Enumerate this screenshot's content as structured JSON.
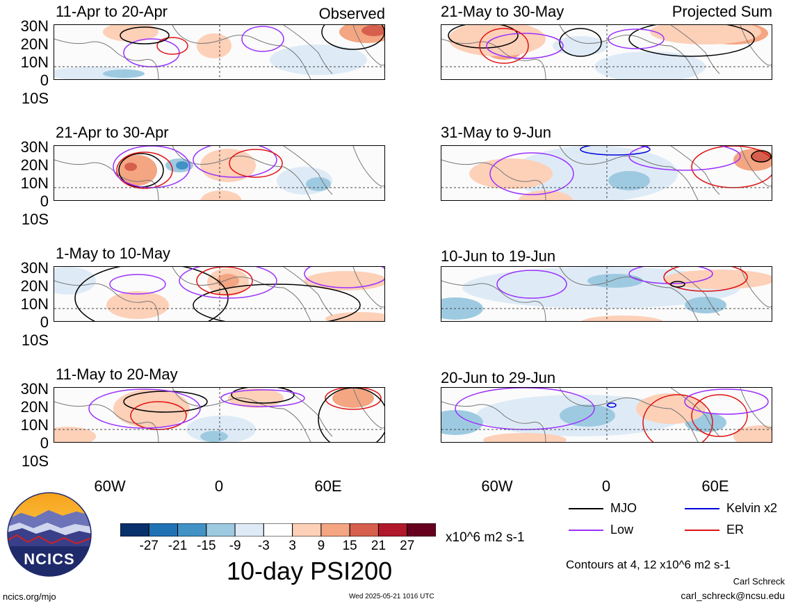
{
  "panels_left": [
    {
      "title": "11-Apr to 20-Apr",
      "label": "Observed"
    },
    {
      "title": "21-Apr to 30-Apr",
      "label": ""
    },
    {
      "title": "1-May to 10-May",
      "label": ""
    },
    {
      "title": "11-May to 20-May",
      "label": ""
    }
  ],
  "panels_right": [
    {
      "title": "21-May to 30-May",
      "label": "Projected Sum"
    },
    {
      "title": "31-May to 9-Jun",
      "label": ""
    },
    {
      "title": "10-Jun to 19-Jun",
      "label": ""
    },
    {
      "title": "20-Jun to 29-Jun",
      "label": ""
    }
  ],
  "lat_labels": [
    "30N",
    "20N",
    "10N",
    "0",
    "10S"
  ],
  "lon_labels": [
    "60W",
    "0",
    "60E"
  ],
  "colorbar": {
    "ticks": [
      "-27",
      "-21",
      "-15",
      "-9",
      "-3",
      "3",
      "9",
      "15",
      "21",
      "27"
    ],
    "colors": [
      "#08306b",
      "#2171b5",
      "#4292c6",
      "#9ecae1",
      "#deebf7",
      "#ffffff",
      "#fdd0b8",
      "#f4a582",
      "#d6604d",
      "#b2182b",
      "#67001f"
    ],
    "units": "x10^6 m2 s-1",
    "title": "10-day PSI200"
  },
  "legend": {
    "items": [
      {
        "label": "MJO",
        "color": "#000000"
      },
      {
        "label": "Kelvin x2",
        "color": "#0000dd"
      },
      {
        "label": "Low",
        "color": "#9b30ff"
      },
      {
        "label": "ER",
        "color": "#e01010"
      }
    ],
    "contours_note": "Contours at 4, 12 x10^6 m2 s-1"
  },
  "logo": {
    "text": "NCICS"
  },
  "footer": {
    "url": "ncics.org/mjo",
    "timestamp": "Wed 2025-05-21 1016 UTC",
    "author": "Carl Schreck",
    "email": "carl_schreck@ncsu.edu"
  }
}
